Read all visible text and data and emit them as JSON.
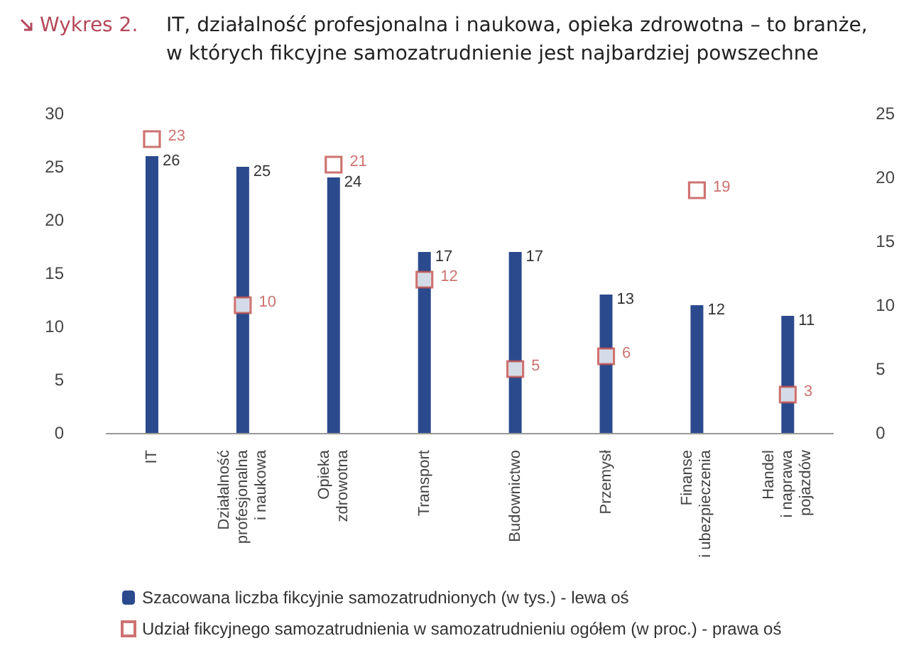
{
  "chart_data": {
    "type": "bar",
    "title": "IT, działalność profesjonalna i naukowa, opieka zdrowotna – to branże, w których fikcyjne samozatrudnienie jest najbardziej powszechne",
    "annotations": [
      "Wykres 2."
    ],
    "categories": [
      "IT",
      "Działalność\nprofesjonalna\ni naukowa",
      "Opieka\nzdrowotna",
      "Transport",
      "Budownictwo",
      "Przemysł",
      "Finanse\ni ubezpieczenia",
      "Handel\ni naprawa\npojazdów"
    ],
    "series": [
      {
        "name": "Szacowana liczba fikcyjnie samozatrudnionych (w tys.) - lewa oś",
        "color": "#2b4a8e",
        "values": [
          26,
          25,
          24,
          17,
          17,
          13,
          12,
          11
        ]
      },
      {
        "name": "Udział fikcyjnego samozatrudnienia w samozatrudnieniu ogółem (w proc.) - prawa oś",
        "type": "scatter",
        "axis": "y2",
        "color": "#c0504d",
        "values": [
          23,
          10,
          21,
          12,
          5,
          6,
          19,
          3
        ]
      }
    ],
    "ylim": [
      0,
      30
    ],
    "yticks": [
      0,
      5,
      10,
      15,
      20,
      25,
      30
    ],
    "y2lim": [
      0,
      25
    ],
    "y2ticks": [
      0,
      5,
      10,
      15,
      20,
      25
    ],
    "data_labels": true,
    "grid": false,
    "legend": "bottom left",
    "marker": "square"
  }
}
